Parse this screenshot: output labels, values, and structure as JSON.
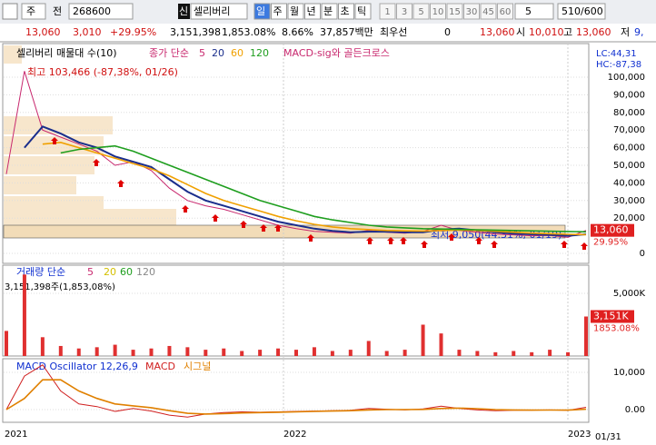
{
  "toolbar": {
    "stock_type": "주",
    "prev": "전",
    "code": "268600",
    "new": "신",
    "name": "셀리버리",
    "periods": [
      "일",
      "주",
      "월",
      "년",
      "분",
      "초",
      "틱"
    ],
    "intervals": [
      "1",
      "3",
      "5",
      "10",
      "15",
      "30",
      "45",
      "60"
    ],
    "interval_select": "5",
    "count": "510/600"
  },
  "info": {
    "price": "13,060",
    "change": "3,010",
    "change_pct": "+29.95%",
    "volume": "3,151,398",
    "volume_pct": "1,853.08%",
    "turnover": "8.66%",
    "amount": "37,857백만",
    "best_label": "최우선",
    "best_value": "0",
    "best_price": "13,060",
    "open_label": "시",
    "open": "10,010",
    "high_label": "고",
    "high": "13,060",
    "low_label": "저",
    "low": "9,"
  },
  "chart_data": [
    {
      "type": "line",
      "title": "셀리버리 매물대 수(10)",
      "legend_label": "종가 단순",
      "extra_legend": "MACD-sig와 골든크로스",
      "lc": "LC:44,31",
      "hc": "HC:-87,38",
      "annotations": [
        "최고 103,466 (-87,38%, 01/26)",
        "최저 9,050(44.31%, 01/19)"
      ],
      "last_label": "13,060",
      "last_pct": "29.95%",
      "ylim": [
        -5670,
        119070
      ],
      "yticks": [
        0,
        {
          "value": 20000,
          "label": "20,000"
        },
        {
          "value": 30000,
          "label": "30,000"
        },
        {
          "value": 40000,
          "label": "40,000"
        },
        {
          "value": 50000,
          "label": "50,000"
        },
        {
          "value": 60000,
          "label": "60,000"
        },
        {
          "value": 70000,
          "label": "70,000"
        },
        {
          "value": 80000,
          "label": "80,000"
        },
        {
          "value": 90000,
          "label": "90,000"
        },
        {
          "value": 100000,
          "label": "100,000"
        }
      ],
      "series": [
        {
          "name": "5",
          "color": "#c8286e",
          "values": [
            45000,
            103466,
            70000,
            66000,
            62000,
            58000,
            50000,
            52000,
            47000,
            37000,
            30000,
            27000,
            25000,
            22000,
            19000,
            16000,
            14000,
            12500,
            12000,
            11500,
            13000,
            12000,
            11500,
            12500,
            16000,
            13000,
            12000,
            11000,
            10500,
            10000,
            10200,
            9050,
            13060
          ]
        },
        {
          "name": "20",
          "color": "#1a2e8c",
          "values": [
            null,
            60000,
            72000,
            68000,
            63000,
            60000,
            55000,
            52000,
            49000,
            42000,
            35000,
            30000,
            27000,
            24000,
            21000,
            18000,
            16000,
            14000,
            12800,
            12000,
            12300,
            12300,
            12000,
            12000,
            13500,
            14000,
            13000,
            12000,
            11200,
            10800,
            10500,
            10000,
            10800
          ]
        },
        {
          "name": "60",
          "color": "#f0a000",
          "values": [
            null,
            null,
            62000,
            63000,
            60000,
            57000,
            54000,
            51000,
            48000,
            44000,
            39000,
            34000,
            30000,
            27000,
            24000,
            21000,
            18500,
            16500,
            15000,
            14000,
            13500,
            13000,
            12800,
            12700,
            13000,
            13200,
            13000,
            12500,
            12000,
            11500,
            11200,
            10800,
            10600
          ]
        },
        {
          "name": "120",
          "color": "#1e9e1e",
          "values": [
            null,
            null,
            null,
            57000,
            59000,
            60000,
            61000,
            58000,
            54000,
            50000,
            46000,
            42000,
            38000,
            34000,
            30000,
            27000,
            24000,
            21000,
            19000,
            17500,
            16000,
            15000,
            14500,
            14000,
            13800,
            13600,
            13400,
            13200,
            13000,
            12800,
            12600,
            12400,
            12200
          ]
        }
      ]
    },
    {
      "type": "bar",
      "title": "거래량 단순",
      "ma_names": [
        "5",
        "20",
        "60",
        "120"
      ],
      "ma_colors": [
        "#c8286e",
        "#d4c000",
        "#1e9e1e",
        "#888888"
      ],
      "subtitle": "3,151,398주(1,853,08%)",
      "color": "#e03030",
      "last_label": "3,151K",
      "last_pct": "1853.08%",
      "ylim": [
        0,
        7246
      ],
      "yticks": [
        {
          "value": 5000,
          "label": "5,000K"
        }
      ],
      "values": [
        2000,
        6500,
        1500,
        800,
        600,
        700,
        900,
        500,
        600,
        800,
        700,
        500,
        600,
        400,
        500,
        600,
        500,
        700,
        400,
        500,
        1200,
        400,
        500,
        2500,
        1800,
        500,
        400,
        300,
        400,
        300,
        500,
        300,
        3151
      ]
    },
    {
      "type": "line",
      "title": "MACD Oscillator 12,26,9",
      "ylim": [
        -3415,
        13659
      ],
      "yticks": [
        {
          "value": 0,
          "label": "0.00"
        },
        {
          "value": 10000,
          "label": "10,000"
        }
      ],
      "x_labels": [
        "2021",
        "2022",
        "2023",
        "01/31"
      ],
      "series": [
        {
          "name": "MACD",
          "color": "#d02020",
          "values": [
            0,
            9000,
            12000,
            5000,
            1500,
            800,
            -500,
            300,
            -400,
            -1500,
            -2000,
            -1200,
            -800,
            -600,
            -700,
            -600,
            -500,
            -400,
            -300,
            -200,
            300,
            100,
            -100,
            200,
            900,
            300,
            -100,
            -300,
            -200,
            -150,
            -100,
            -200,
            600
          ]
        },
        {
          "name": "시그널",
          "color": "#e08000",
          "values": [
            0,
            3000,
            8000,
            8000,
            5000,
            3000,
            1500,
            1000,
            500,
            -300,
            -1000,
            -1200,
            -1100,
            -900,
            -800,
            -700,
            -600,
            -500,
            -400,
            -300,
            -100,
            0,
            0,
            50,
            300,
            400,
            250,
            0,
            -100,
            -150,
            -130,
            -150,
            100
          ]
        }
      ]
    }
  ]
}
